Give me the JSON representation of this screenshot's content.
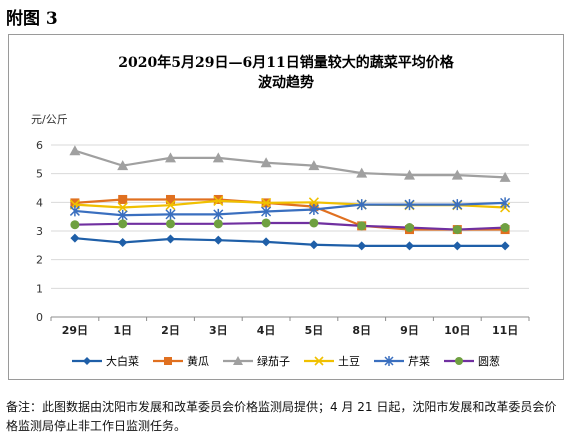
{
  "figure_label": "附图 3",
  "note": "备注：此图数据由沈阳市发展和改革委员会价格监测局提供；4 月 21 日起，沈阳市发展和改革委员会价格监测局停止非工作日监测任务。",
  "chart_data": {
    "type": "line",
    "title_line1": "2020年5月29日—6月11日销量较大的蔬菜平均价格",
    "title_line2": "波动趋势",
    "ylabel": "元/公斤",
    "ylim": [
      0,
      6
    ],
    "yticks": [
      0,
      1,
      2,
      3,
      4,
      5,
      6
    ],
    "grid": true,
    "legend_position": "bottom",
    "categories": [
      "29日",
      "1日",
      "2日",
      "3日",
      "4日",
      "5日",
      "8日",
      "9日",
      "10日",
      "11日"
    ],
    "series": [
      {
        "name": "大白菜",
        "color": "#1f5fa8",
        "marker": "diamond",
        "values": [
          2.75,
          2.6,
          2.72,
          2.68,
          2.62,
          2.52,
          2.48,
          2.48,
          2.48,
          2.48
        ]
      },
      {
        "name": "黄瓜",
        "color": "#e07020",
        "marker": "square",
        "values": [
          3.98,
          4.1,
          4.1,
          4.1,
          3.98,
          3.85,
          3.18,
          3.05,
          3.05,
          3.05
        ]
      },
      {
        "name": "绿茄子",
        "color": "#a0a0a0",
        "marker": "triangle",
        "values": [
          5.8,
          5.28,
          5.55,
          5.55,
          5.38,
          5.28,
          5.02,
          4.95,
          4.95,
          4.87
        ]
      },
      {
        "name": "土豆",
        "color": "#f0c000",
        "marker": "x",
        "values": [
          3.92,
          3.82,
          3.9,
          4.05,
          3.98,
          4.0,
          3.92,
          3.9,
          3.9,
          3.82
        ]
      },
      {
        "name": "芹菜",
        "color": "#3a6fbf",
        "marker": "star",
        "values": [
          3.7,
          3.55,
          3.58,
          3.58,
          3.68,
          3.75,
          3.92,
          3.92,
          3.92,
          3.98
        ]
      },
      {
        "name": "圆葱",
        "color": "#6fa040",
        "line_color": "#7030a0",
        "marker": "circle",
        "values": [
          3.22,
          3.25,
          3.25,
          3.25,
          3.28,
          3.28,
          3.18,
          3.12,
          3.05,
          3.12
        ]
      }
    ]
  }
}
